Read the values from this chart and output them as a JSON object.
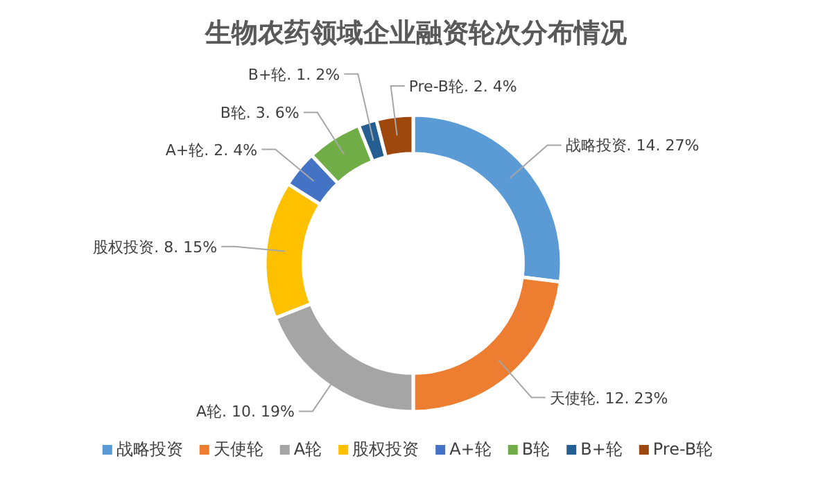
{
  "chart_data": {
    "type": "donut",
    "title": "生物农药领域企业融资轮次分布情况",
    "categories": [
      "战略投资",
      "天使轮",
      "A轮",
      "股权投资",
      "A+轮",
      "B轮",
      "B+轮",
      "Pre-B轮"
    ],
    "values": [
      27,
      23,
      19,
      15,
      4,
      6,
      2,
      4
    ],
    "value_labels": [
      "战略投资. 14. 27%",
      "天使轮. 12. 23%",
      "A轮. 10. 19%",
      "股权投资. 8. 15%",
      "A+轮. 2. 4%",
      "B轮. 3. 6%",
      "B+轮. 1. 2%",
      "Pre-B轮. 2. 4%"
    ],
    "colors": [
      "#5b9bd5",
      "#ed7d31",
      "#a5a5a5",
      "#ffc000",
      "#4472c4",
      "#70ad47",
      "#255e91",
      "#9e480e"
    ],
    "legend": "bottom"
  }
}
